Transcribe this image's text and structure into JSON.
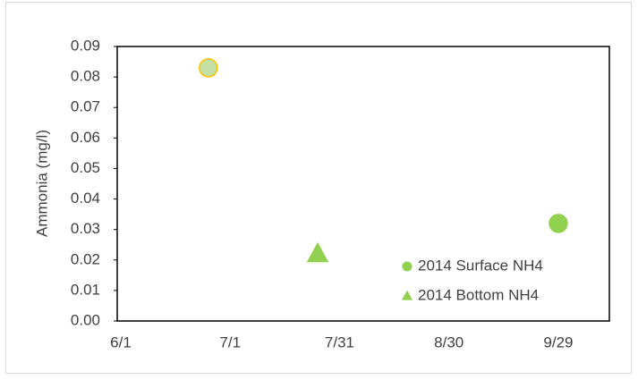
{
  "chart_data": {
    "type": "scatter",
    "y_label": "Ammonia  (mg/l)",
    "series": [
      {
        "name": "2014 Surface NH4",
        "color": "#92d050",
        "marker": "circle",
        "x": [
          "6/25",
          "9/29"
        ],
        "values": [
          0.083,
          0.032
        ],
        "point_colors": [
          "#c5e0a5",
          "#92d050"
        ],
        "edge_colors": [
          "#ffc000",
          "#92d050"
        ]
      },
      {
        "name": "2014 Bottom NH4",
        "color": "#92d050",
        "marker": "triangle",
        "x": [
          "7/25"
        ],
        "values": [
          0.022
        ]
      }
    ],
    "xlim": [
      "6/1",
      "10/13"
    ],
    "xticks": [
      "6/1",
      "7/1",
      "7/31",
      "8/30",
      "9/29"
    ],
    "ylim": [
      0,
      0.09
    ],
    "yticks": [
      {
        "value": 0,
        "label": "0.00"
      },
      0.01,
      0.02,
      0.03,
      0.04,
      0.05,
      0.06,
      0.07,
      0.08,
      0.09
    ],
    "grid": false,
    "legend": "lower right"
  }
}
